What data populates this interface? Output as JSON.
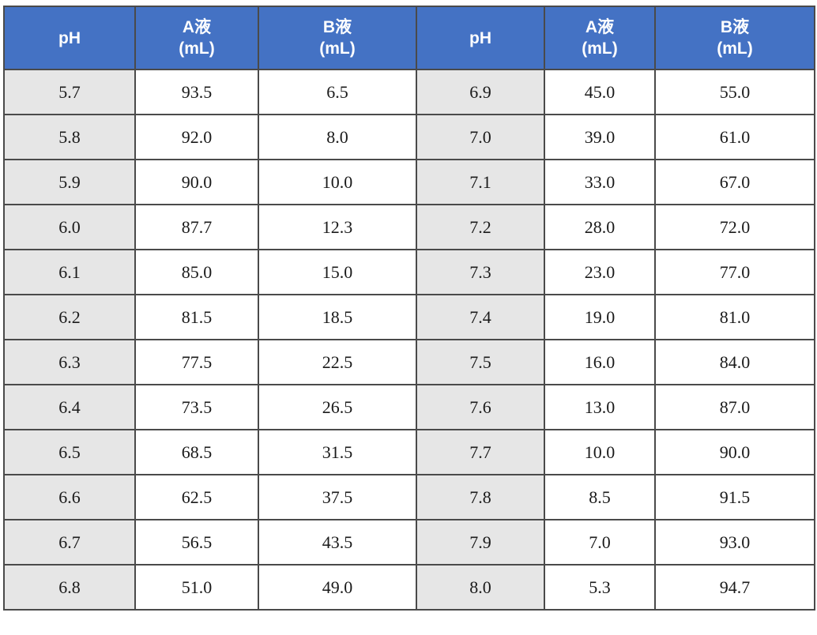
{
  "header": {
    "ph": "pH",
    "a_line1": "A液",
    "a_line2": "(mL)",
    "b_line1": "B液",
    "b_line2": "(mL)"
  },
  "rows": [
    {
      "ph1": "5.7",
      "a1": "93.5",
      "b1": "6.5",
      "ph2": "6.9",
      "a2": "45.0",
      "b2": "55.0"
    },
    {
      "ph1": "5.8",
      "a1": "92.0",
      "b1": "8.0",
      "ph2": "7.0",
      "a2": "39.0",
      "b2": "61.0"
    },
    {
      "ph1": "5.9",
      "a1": "90.0",
      "b1": "10.0",
      "ph2": "7.1",
      "a2": "33.0",
      "b2": "67.0"
    },
    {
      "ph1": "6.0",
      "a1": "87.7",
      "b1": "12.3",
      "ph2": "7.2",
      "a2": "28.0",
      "b2": "72.0"
    },
    {
      "ph1": "6.1",
      "a1": "85.0",
      "b1": "15.0",
      "ph2": "7.3",
      "a2": "23.0",
      "b2": "77.0"
    },
    {
      "ph1": "6.2",
      "a1": "81.5",
      "b1": "18.5",
      "ph2": "7.4",
      "a2": "19.0",
      "b2": "81.0"
    },
    {
      "ph1": "6.3",
      "a1": "77.5",
      "b1": "22.5",
      "ph2": "7.5",
      "a2": "16.0",
      "b2": "84.0"
    },
    {
      "ph1": "6.4",
      "a1": "73.5",
      "b1": "26.5",
      "ph2": "7.6",
      "a2": "13.0",
      "b2": "87.0"
    },
    {
      "ph1": "6.5",
      "a1": "68.5",
      "b1": "31.5",
      "ph2": "7.7",
      "a2": "10.0",
      "b2": "90.0"
    },
    {
      "ph1": "6.6",
      "a1": "62.5",
      "b1": "37.5",
      "ph2": "7.8",
      "a2": "8.5",
      "b2": "91.5"
    },
    {
      "ph1": "6.7",
      "a1": "56.5",
      "b1": "43.5",
      "ph2": "7.9",
      "a2": "7.0",
      "b2": "93.0"
    },
    {
      "ph1": "6.8",
      "a1": "51.0",
      "b1": "49.0",
      "ph2": "8.0",
      "a2": "5.3",
      "b2": "94.7"
    }
  ],
  "colors": {
    "header_bg": "#4472c4",
    "header_text": "#ffffff",
    "ph_cell_bg": "#e6e6e6",
    "border": "#4a4a4a"
  }
}
